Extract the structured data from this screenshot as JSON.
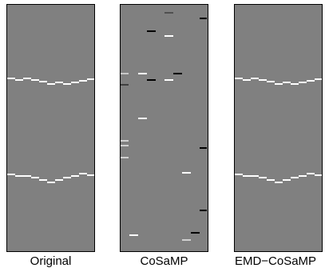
{
  "panels": [
    {
      "label": "Original",
      "background": "#808080",
      "segments": [
        {
          "row": 91,
          "col": 0,
          "len": 10,
          "color": "#ffffff"
        },
        {
          "row": 93,
          "col": 10,
          "len": 10,
          "color": "#ffffff"
        },
        {
          "row": 91,
          "col": 20,
          "len": 10,
          "color": "#ffffff"
        },
        {
          "row": 93,
          "col": 30,
          "len": 10,
          "color": "#ffffff"
        },
        {
          "row": 95,
          "col": 40,
          "len": 10,
          "color": "#ffffff"
        },
        {
          "row": 98,
          "col": 50,
          "len": 10,
          "color": "#ffffff"
        },
        {
          "row": 96,
          "col": 60,
          "len": 10,
          "color": "#ffffff"
        },
        {
          "row": 98,
          "col": 70,
          "len": 10,
          "color": "#ffffff"
        },
        {
          "row": 96,
          "col": 80,
          "len": 10,
          "color": "#ffffff"
        },
        {
          "row": 94,
          "col": 90,
          "len": 10,
          "color": "#ffffff"
        },
        {
          "row": 92,
          "col": 100,
          "len": 10,
          "color": "#ffffff"
        },
        {
          "row": 211,
          "col": 0,
          "len": 10,
          "color": "#ffffff"
        },
        {
          "row": 213,
          "col": 10,
          "len": 10,
          "color": "#ffffff"
        },
        {
          "row": 213,
          "col": 20,
          "len": 10,
          "color": "#ffffff"
        },
        {
          "row": 215,
          "col": 30,
          "len": 10,
          "color": "#ffffff"
        },
        {
          "row": 218,
          "col": 40,
          "len": 10,
          "color": "#ffffff"
        },
        {
          "row": 221,
          "col": 50,
          "len": 10,
          "color": "#ffffff"
        },
        {
          "row": 218,
          "col": 60,
          "len": 10,
          "color": "#ffffff"
        },
        {
          "row": 215,
          "col": 70,
          "len": 10,
          "color": "#ffffff"
        },
        {
          "row": 213,
          "col": 80,
          "len": 10,
          "color": "#ffffff"
        },
        {
          "row": 210,
          "col": 90,
          "len": 10,
          "color": "#ffffff"
        },
        {
          "row": 212,
          "col": 100,
          "len": 10,
          "color": "#ffffff"
        }
      ]
    },
    {
      "label": "CoSaMP",
      "background": "#808080",
      "segments": [
        {
          "row": 9,
          "col": 55,
          "len": 11,
          "color": "#505050"
        },
        {
          "row": 16,
          "col": 99,
          "len": 9,
          "color": "#000000"
        },
        {
          "row": 32,
          "col": 33,
          "len": 11,
          "color": "#000000"
        },
        {
          "row": 38,
          "col": 55,
          "len": 11,
          "color": "#ffffff"
        },
        {
          "row": 85,
          "col": 0,
          "len": 10,
          "color": "#c8c8c8"
        },
        {
          "row": 85,
          "col": 22,
          "len": 11,
          "color": "#ffffff"
        },
        {
          "row": 85,
          "col": 66,
          "len": 11,
          "color": "#000000"
        },
        {
          "row": 93,
          "col": 33,
          "len": 11,
          "color": "#000000"
        },
        {
          "row": 93,
          "col": 55,
          "len": 11,
          "color": "#ffffff"
        },
        {
          "row": 99,
          "col": 0,
          "len": 10,
          "color": "#404040"
        },
        {
          "row": 141,
          "col": 22,
          "len": 11,
          "color": "#ffffff"
        },
        {
          "row": 169,
          "col": 0,
          "len": 10,
          "color": "#d0d0d0"
        },
        {
          "row": 175,
          "col": 0,
          "len": 10,
          "color": "#d0d0d0"
        },
        {
          "row": 178,
          "col": 99,
          "len": 9,
          "color": "#000000"
        },
        {
          "row": 190,
          "col": 0,
          "len": 10,
          "color": "#d0d0d0"
        },
        {
          "row": 209,
          "col": 77,
          "len": 11,
          "color": "#ffffff"
        },
        {
          "row": 256,
          "col": 99,
          "len": 9,
          "color": "#000000"
        },
        {
          "row": 284,
          "col": 88,
          "len": 11,
          "color": "#000000"
        },
        {
          "row": 287,
          "col": 11,
          "len": 11,
          "color": "#ffffff"
        },
        {
          "row": 293,
          "col": 77,
          "len": 11,
          "color": "#d0d0d0"
        }
      ]
    },
    {
      "label": "EMD−CoSaMP",
      "background": "#808080",
      "segments": [
        {
          "row": 91,
          "col": 0,
          "len": 10,
          "color": "#ffffff"
        },
        {
          "row": 93,
          "col": 10,
          "len": 10,
          "color": "#ffffff"
        },
        {
          "row": 91,
          "col": 20,
          "len": 10,
          "color": "#ffffff"
        },
        {
          "row": 93,
          "col": 30,
          "len": 10,
          "color": "#ffffff"
        },
        {
          "row": 95,
          "col": 40,
          "len": 10,
          "color": "#ffffff"
        },
        {
          "row": 98,
          "col": 50,
          "len": 10,
          "color": "#ffffff"
        },
        {
          "row": 96,
          "col": 60,
          "len": 10,
          "color": "#ffffff"
        },
        {
          "row": 98,
          "col": 70,
          "len": 10,
          "color": "#ffffff"
        },
        {
          "row": 96,
          "col": 80,
          "len": 10,
          "color": "#ffffff"
        },
        {
          "row": 94,
          "col": 90,
          "len": 10,
          "color": "#ffffff"
        },
        {
          "row": 92,
          "col": 100,
          "len": 10,
          "color": "#ffffff"
        },
        {
          "row": 211,
          "col": 0,
          "len": 10,
          "color": "#ffffff"
        },
        {
          "row": 213,
          "col": 10,
          "len": 10,
          "color": "#ffffff"
        },
        {
          "row": 213,
          "col": 20,
          "len": 10,
          "color": "#ffffff"
        },
        {
          "row": 215,
          "col": 30,
          "len": 10,
          "color": "#ffffff"
        },
        {
          "row": 218,
          "col": 40,
          "len": 10,
          "color": "#ffffff"
        },
        {
          "row": 221,
          "col": 50,
          "len": 10,
          "color": "#ffffff"
        },
        {
          "row": 218,
          "col": 60,
          "len": 10,
          "color": "#ffffff"
        },
        {
          "row": 215,
          "col": 70,
          "len": 10,
          "color": "#ffffff"
        },
        {
          "row": 213,
          "col": 80,
          "len": 10,
          "color": "#ffffff"
        },
        {
          "row": 210,
          "col": 90,
          "len": 10,
          "color": "#ffffff"
        },
        {
          "row": 212,
          "col": 100,
          "len": 10,
          "color": "#ffffff"
        }
      ]
    }
  ]
}
